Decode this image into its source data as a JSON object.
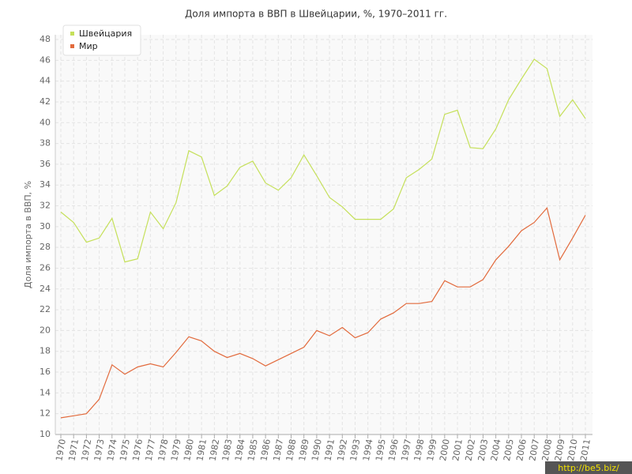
{
  "chart_data": {
    "type": "line",
    "title": "Доля импорта в ВВП в Швейцарии, %, 1970–2011 гг.",
    "y_label": "Доля импорта в ВВП, %",
    "watermark": "http://be5.biz/",
    "categories": [
      "1970",
      "1971",
      "1972",
      "1973",
      "1974",
      "1975",
      "1976",
      "1977",
      "1978",
      "1979",
      "1980",
      "1981",
      "1982",
      "1983",
      "1984",
      "1985",
      "1986",
      "1987",
      "1988",
      "1989",
      "1990",
      "1991",
      "1992",
      "1993",
      "1994",
      "1995",
      "1996",
      "1997",
      "1998",
      "1999",
      "2000",
      "2001",
      "2002",
      "2003",
      "2004",
      "2005",
      "2006",
      "2007",
      "2008",
      "2009",
      "2010",
      "2011"
    ],
    "series": [
      {
        "name": "Швейцария",
        "color": "#c5e05a",
        "values": [
          31.4,
          30.4,
          28.5,
          28.9,
          30.8,
          26.6,
          26.9,
          31.4,
          29.8,
          32.3,
          37.3,
          36.7,
          33.0,
          33.9,
          35.7,
          36.3,
          34.2,
          33.5,
          34.7,
          36.9,
          34.9,
          32.8,
          31.9,
          30.7,
          30.7,
          30.7,
          31.7,
          34.7,
          35.5,
          36.5,
          40.8,
          41.2,
          37.6,
          37.5,
          39.4,
          42.2,
          44.2,
          46.1,
          45.2,
          40.6,
          42.2,
          40.4
        ]
      },
      {
        "name": "Мир",
        "color": "#e26a3c",
        "values": [
          11.6,
          11.8,
          12.0,
          13.4,
          16.7,
          15.8,
          16.5,
          16.8,
          16.5,
          17.9,
          19.4,
          19.0,
          18.0,
          17.4,
          17.8,
          17.3,
          16.6,
          17.2,
          17.8,
          18.4,
          20.0,
          19.5,
          20.3,
          19.3,
          19.8,
          21.1,
          21.7,
          22.6,
          22.6,
          22.8,
          24.8,
          24.2,
          24.2,
          24.9,
          26.8,
          28.1,
          29.6,
          30.4,
          31.8,
          26.8,
          28.9,
          31.1
        ]
      }
    ],
    "ylim": [
      10,
      48
    ],
    "yticks": [
      10,
      12,
      14,
      16,
      18,
      20,
      22,
      24,
      26,
      28,
      30,
      32,
      34,
      36,
      38,
      40,
      42,
      44,
      46,
      48
    ],
    "grid": true,
    "legend": "top-left"
  }
}
